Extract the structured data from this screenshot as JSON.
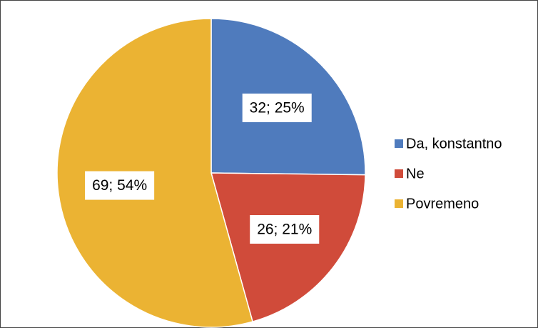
{
  "chart_data": {
    "type": "pie",
    "categories": [
      "Da, konstantno",
      "Ne",
      "Povremeno"
    ],
    "values": [
      32,
      26,
      69
    ],
    "value_labels": [
      "32; 25%",
      "26; 21%",
      "69; 54%"
    ],
    "colors": [
      "#4f7bbd",
      "#d04b3a",
      "#ebb333"
    ],
    "legend": "right"
  }
}
